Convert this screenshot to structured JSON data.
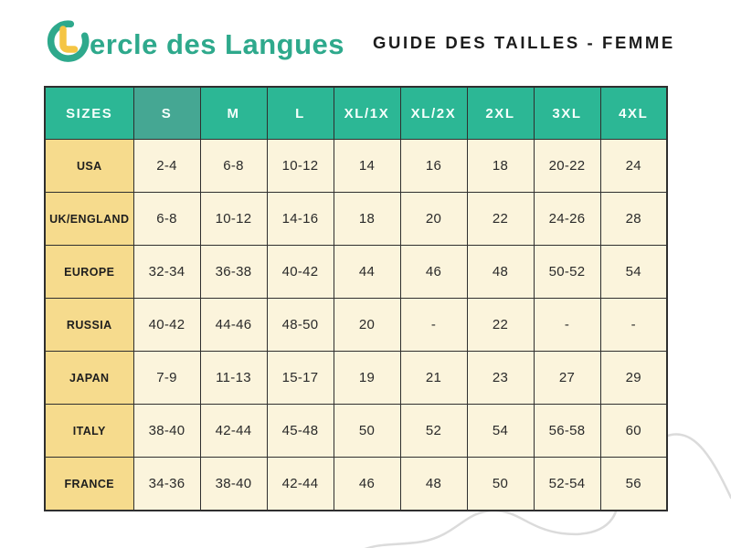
{
  "brand": {
    "logo_text": "ercle des Langues",
    "logo_icon": "c-monogram-with-yellow-l"
  },
  "header": {
    "title": "GUIDE DES TAILLES - FEMME"
  },
  "colors": {
    "teal": "#2EA98C",
    "yellow": "#F5C544",
    "header_bg": "#2CB795",
    "header_s_bg": "#45A793",
    "label_bg": "#F6DB8D",
    "cell_bg": "#FBF4DC",
    "border": "#2F2F2F",
    "squiggle": "#DBDBDB",
    "title_text": "#1C1C1C"
  },
  "chart_data": {
    "type": "table",
    "title": "GUIDE DES TAILLES - FEMME",
    "columns": [
      "SIZES",
      "S",
      "M",
      "L",
      "XL/1X",
      "XL/2X",
      "2XL",
      "3XL",
      "4XL"
    ],
    "rows": [
      {
        "region": "USA",
        "values": [
          "2-4",
          "6-8",
          "10-12",
          "14",
          "16",
          "18",
          "20-22",
          "24"
        ]
      },
      {
        "region": "UK/ENGLAND",
        "values": [
          "6-8",
          "10-12",
          "14-16",
          "18",
          "20",
          "22",
          "24-26",
          "28"
        ]
      },
      {
        "region": "EUROPE",
        "values": [
          "32-34",
          "36-38",
          "40-42",
          "44",
          "46",
          "48",
          "50-52",
          "54"
        ]
      },
      {
        "region": "RUSSIA",
        "values": [
          "40-42",
          "44-46",
          "48-50",
          "20",
          "-",
          "22",
          "-",
          "-"
        ]
      },
      {
        "region": "JAPAN",
        "values": [
          "7-9",
          "11-13",
          "15-17",
          "19",
          "21",
          "23",
          "27",
          "29"
        ]
      },
      {
        "region": "ITALY",
        "values": [
          "38-40",
          "42-44",
          "45-48",
          "50",
          "52",
          "54",
          "56-58",
          "60"
        ]
      },
      {
        "region": "FRANCE",
        "values": [
          "34-36",
          "38-40",
          "42-44",
          "46",
          "48",
          "50",
          "52-54",
          "56"
        ]
      }
    ]
  }
}
